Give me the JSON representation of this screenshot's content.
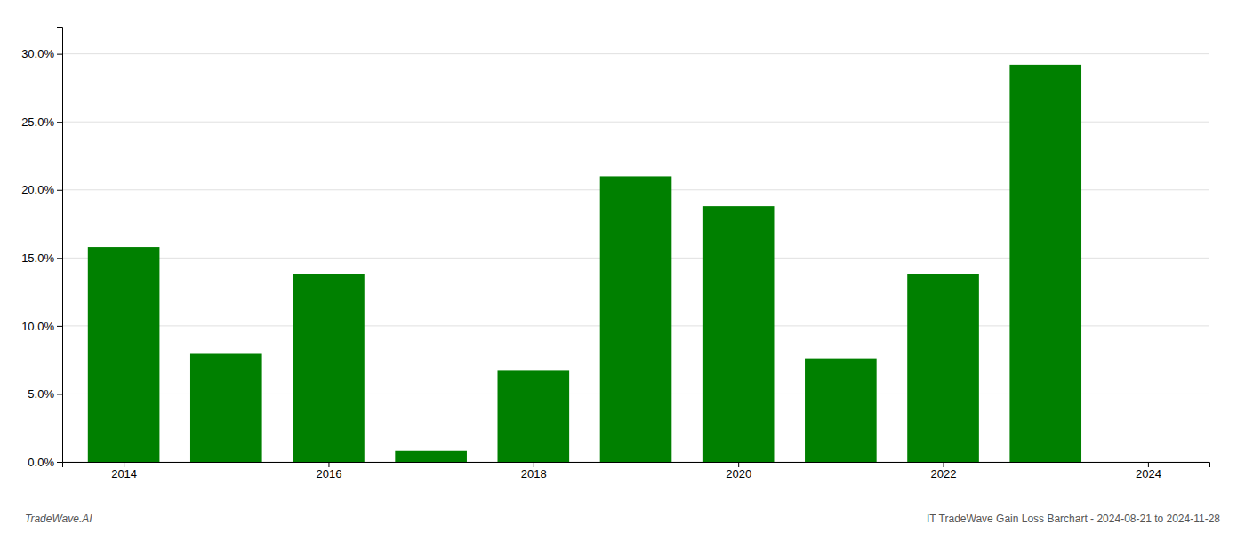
{
  "chart_data": {
    "type": "bar",
    "x": [
      2014,
      2015,
      2016,
      2017,
      2018,
      2019,
      2020,
      2021,
      2022,
      2023
    ],
    "values": [
      0.158,
      0.08,
      0.138,
      0.008,
      0.067,
      0.21,
      0.188,
      0.076,
      0.138,
      0.292
    ],
    "color": "#008000",
    "xlim": [
      2013.4,
      2024.6
    ],
    "xticks": [
      2014,
      2016,
      2018,
      2020,
      2022,
      2024
    ],
    "ylim": [
      0.0,
      0.32
    ],
    "yticks": [
      {
        "value": 0.0,
        "label": "0.0%"
      },
      {
        "value": 0.05,
        "label": "5.0%"
      },
      {
        "value": 0.1,
        "label": "10.0%"
      },
      {
        "value": 0.15,
        "label": "15.0%"
      },
      {
        "value": 0.2,
        "label": "20.0%"
      },
      {
        "value": 0.25,
        "label": "25.0%"
      },
      {
        "value": 0.3,
        "label": "30.0%"
      }
    ],
    "grid": true,
    "annotations": [
      "TradeWave.AI",
      "IT TradeWave Gain Loss Barchart - 2024-08-21 to 2024-11-28"
    ]
  }
}
